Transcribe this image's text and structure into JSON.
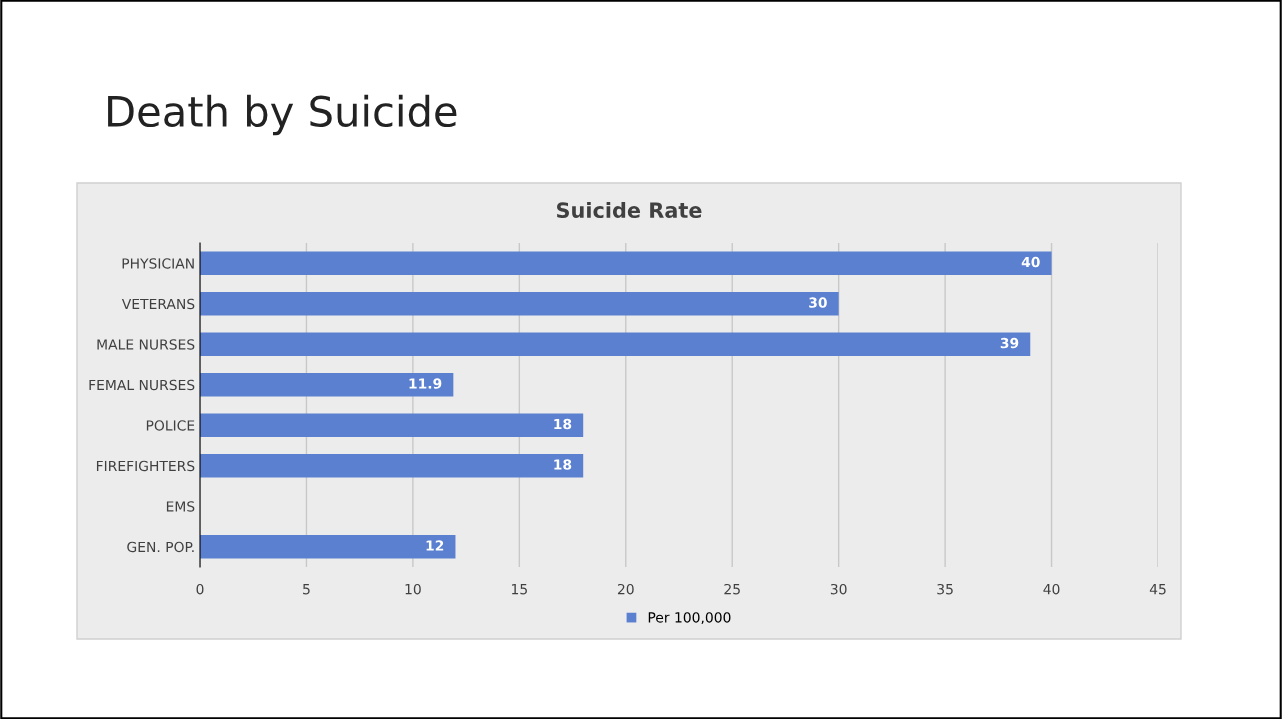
{
  "chart_data": {
    "type": "bar",
    "orientation": "horizontal",
    "title": "Death by Suicide",
    "subtitle": "Suicide Rate",
    "categories": [
      "PHYSICIAN",
      "VETERANS",
      "MALE NURSES",
      "FEMAL NURSES",
      "POLICE",
      "FIREFIGHTERS",
      "EMS",
      "GEN. POP."
    ],
    "series": [
      {
        "name": "Per 100,000",
        "color": "#5b80d0",
        "values": [
          40,
          30,
          39,
          11.9,
          18,
          18,
          null,
          12
        ]
      }
    ],
    "xlim": [
      0,
      45
    ],
    "xticks": [
      0,
      5,
      10,
      15,
      20,
      25,
      30,
      35,
      40,
      45
    ],
    "grid": "x",
    "legend": "bottom",
    "data_labels": true
  }
}
